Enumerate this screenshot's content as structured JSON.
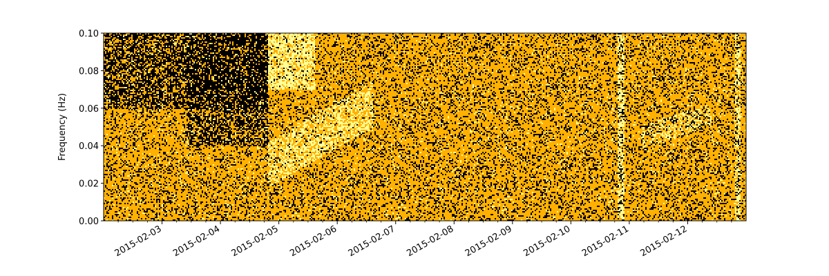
{
  "chart_data": {
    "type": "heatmap",
    "title": "",
    "xlabel": "",
    "ylabel": "Frequency (Hz)",
    "x_range": [
      "2015-02-02",
      "2015-02-13"
    ],
    "ylim": [
      0,
      0.1
    ],
    "x_ticks": [
      "2015-02-03",
      "2015-02-04",
      "2015-02-05",
      "2015-02-06",
      "2015-02-07",
      "2015-02-08",
      "2015-02-09",
      "2015-02-10",
      "2015-02-11",
      "2015-02-12"
    ],
    "y_ticks": [
      "0.00",
      "0.02",
      "0.04",
      "0.06",
      "0.08",
      "0.10"
    ],
    "colors": {
      "low": "#000000",
      "mid": "#ffb000",
      "high": "#ffff99"
    },
    "grid": false
  }
}
